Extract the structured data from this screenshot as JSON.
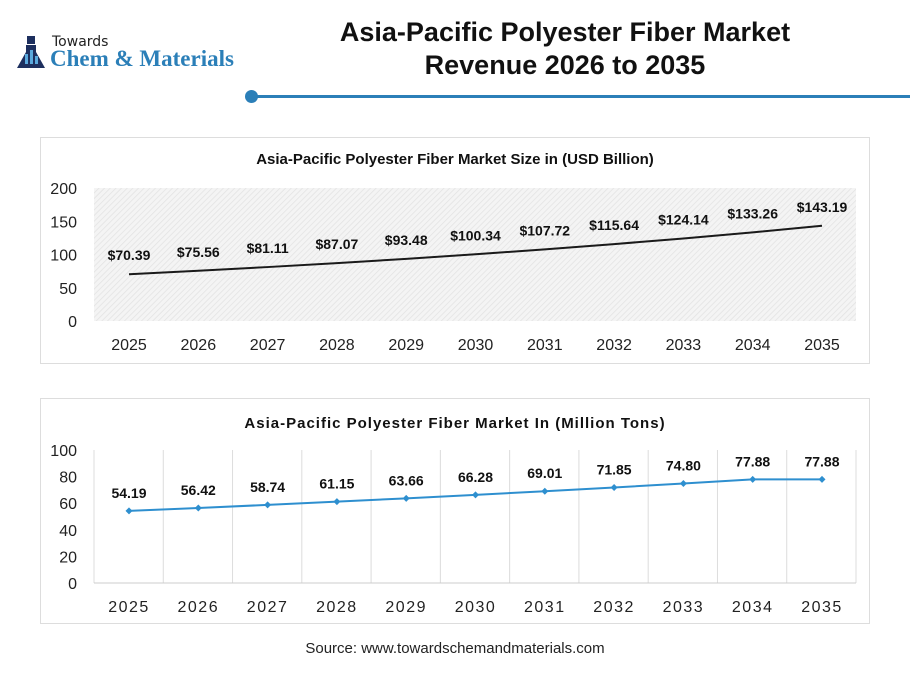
{
  "logo": {
    "small": "Towards",
    "big": "Chem & Materials"
  },
  "header": {
    "title_line1": "Asia-Pacific Polyester Fiber Market",
    "title_line2": "Revenue 2026 to 2035"
  },
  "colors": {
    "accent": "#2b7fb8",
    "line1": "#1a1a1a",
    "line2": "#2e8fcf"
  },
  "chart_data": [
    {
      "type": "line",
      "title": "Asia-Pacific Polyester Fiber Market Size in (USD Billion)",
      "categories": [
        "2025",
        "2026",
        "2027",
        "2028",
        "2029",
        "2030",
        "2031",
        "2032",
        "2033",
        "2034",
        "2035"
      ],
      "values": [
        70.39,
        75.56,
        81.11,
        87.07,
        93.48,
        100.34,
        107.72,
        115.64,
        124.14,
        133.26,
        143.19
      ],
      "labels": [
        "$70.39",
        "$75.56",
        "$81.11",
        "$87.07",
        "$93.48",
        "$100.34",
        "$107.72",
        "$115.64",
        "$124.14",
        "$133.26",
        "$143.19"
      ],
      "yticks": [
        "0",
        "50",
        "100",
        "150",
        "200"
      ],
      "ylim": [
        0,
        200
      ],
      "grid": false
    },
    {
      "type": "line",
      "title": "Asia-Pacific Polyester Fiber Market In (Million Tons)",
      "categories": [
        "2025",
        "2026",
        "2027",
        "2028",
        "2029",
        "2030",
        "2031",
        "2032",
        "2033",
        "2034",
        "2035"
      ],
      "values": [
        54.19,
        56.42,
        58.74,
        61.15,
        63.66,
        66.28,
        69.01,
        71.85,
        74.8,
        77.88,
        77.88
      ],
      "labels": [
        "54.19",
        "56.42",
        "58.74",
        "61.15",
        "63.66",
        "66.28",
        "69.01",
        "71.85",
        "74.80",
        "77.88",
        "77.88"
      ],
      "yticks": [
        "0",
        "20",
        "40",
        "60",
        "80",
        "100"
      ],
      "ylim": [
        0,
        100
      ],
      "grid": true
    }
  ],
  "source": "Source: www.towardschemandmaterials.com"
}
